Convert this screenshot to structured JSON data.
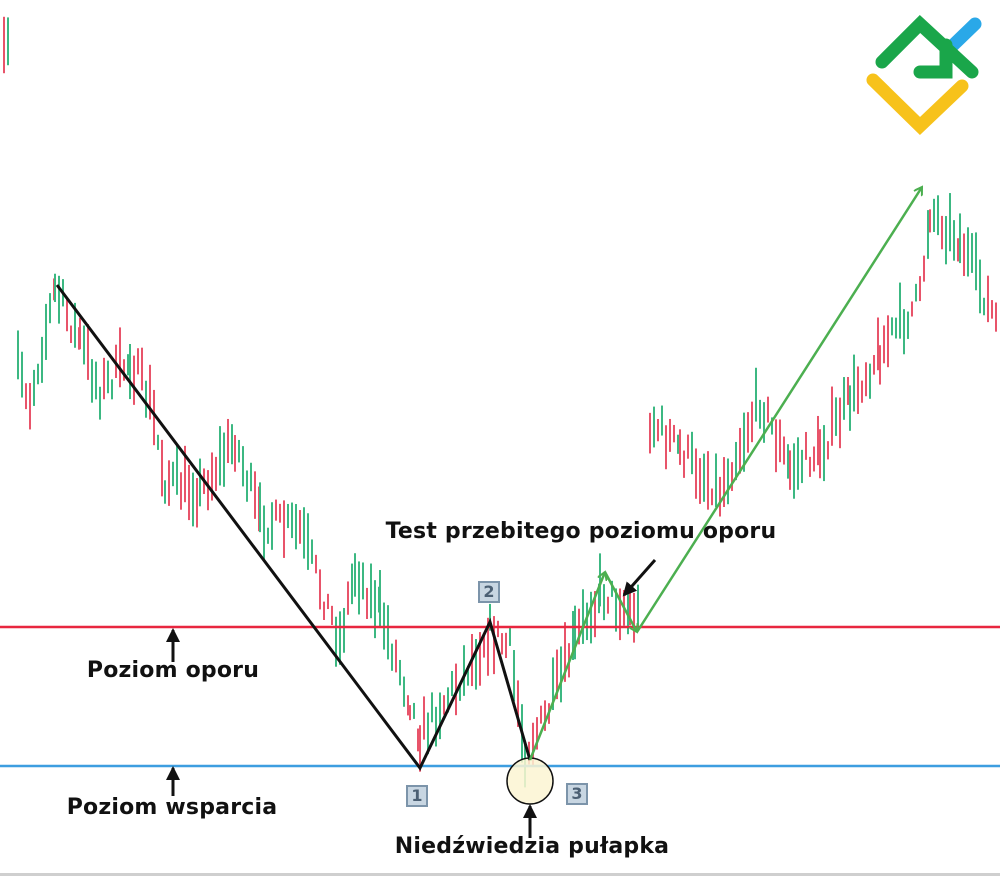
{
  "chart_data": {
    "type": "candlestick",
    "title": "",
    "colors": {
      "up": "#3cb882",
      "down": "#e8546a",
      "resistance": "#e8263f",
      "support": "#3d9ee0",
      "pattern": "#111111",
      "breakout": "#4caf50",
      "trap_circle": "#fbf5d2"
    },
    "levels": [
      {
        "name": "resistance",
        "label": "Poziom oporu"
      },
      {
        "name": "support",
        "label": "Poziom wsparcia"
      }
    ],
    "markers": [
      "1",
      "2",
      "3"
    ],
    "annotations": {
      "retest": "Test przebitego poziomu oporu",
      "trap": "Niedźwiedzia pułapka"
    },
    "axes": "none",
    "grid": false
  },
  "logo": {
    "colors": [
      "#1aa64a",
      "#2aa8e8",
      "#f7c21b"
    ]
  }
}
